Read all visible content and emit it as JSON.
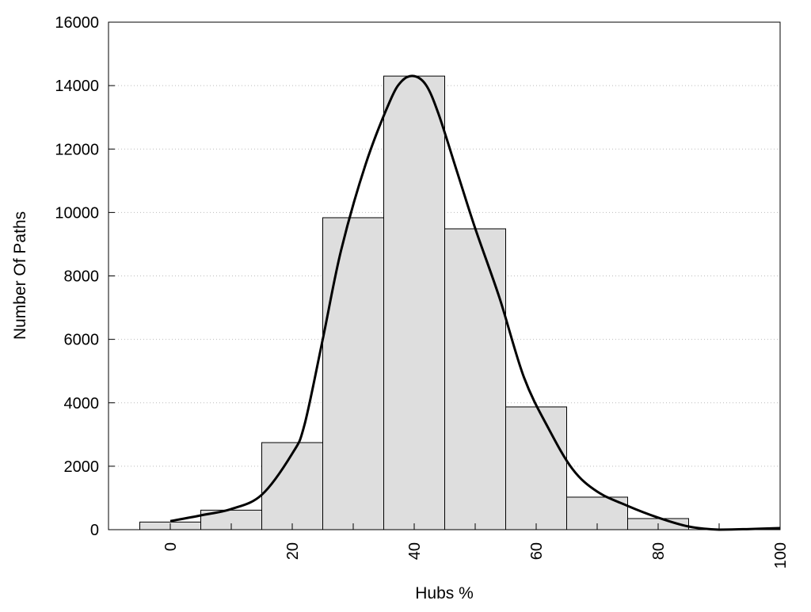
{
  "chart_data": {
    "type": "bar",
    "title": "",
    "xlabel": "Hubs %",
    "ylabel": "Number Of Paths",
    "xlim": [
      -10,
      100
    ],
    "ylim": [
      0,
      16000
    ],
    "xticks": [
      0,
      20,
      40,
      60,
      80,
      100
    ],
    "yticks": [
      0,
      2000,
      4000,
      6000,
      8000,
      10000,
      12000,
      14000,
      16000
    ],
    "grid": "horizontal dotted",
    "bin_width": 10,
    "bars": {
      "x": [
        0,
        10,
        20,
        30,
        40,
        50,
        60,
        70,
        80
      ],
      "values": [
        240,
        615,
        2745,
        9835,
        14300,
        9485,
        3870,
        1025,
        350
      ],
      "color": "#dedede"
    },
    "curve": {
      "type": "line",
      "color": "#000000",
      "x": [
        0,
        5,
        10,
        15,
        20,
        22,
        25,
        28,
        32,
        36,
        38,
        40,
        42,
        44,
        47,
        50,
        54,
        58,
        62,
        66,
        70,
        75,
        80,
        85,
        90,
        95,
        100
      ],
      "y": [
        270,
        450,
        650,
        1100,
        2400,
        3300,
        6000,
        8800,
        11500,
        13500,
        14150,
        14300,
        14000,
        13100,
        11300,
        9500,
        7300,
        4800,
        3200,
        1900,
        1200,
        750,
        380,
        100,
        0,
        20,
        50
      ]
    }
  }
}
